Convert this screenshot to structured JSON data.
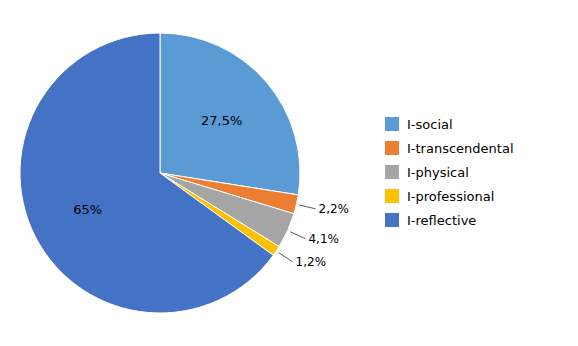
{
  "chart_data": {
    "type": "pie",
    "categories": [
      "I-social",
      "I-transcendental",
      "I-physical",
      "I-professional",
      "I-reflective"
    ],
    "values": [
      27.5,
      2.2,
      4.1,
      1.2,
      65.0
    ],
    "value_labels": [
      "27,5%",
      "2,2%",
      "4,1%",
      "1,2%",
      "65%"
    ],
    "colors": [
      "#5B9BD5",
      "#ED7D31",
      "#A5A5A5",
      "#FFC000",
      "#4472C4"
    ],
    "data_labels": true,
    "legend": "right"
  }
}
